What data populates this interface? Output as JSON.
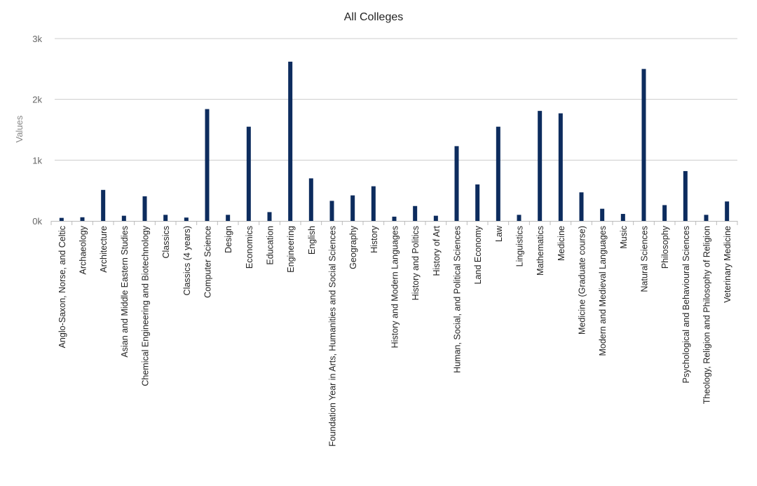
{
  "chart_data": {
    "type": "bar",
    "title": "All Colleges",
    "ylabel": "Values",
    "xlabel": "",
    "ylim": [
      0,
      3000
    ],
    "y_ticks": [
      {
        "value": 0,
        "label": "0k"
      },
      {
        "value": 1000,
        "label": "1k"
      },
      {
        "value": 2000,
        "label": "2k"
      },
      {
        "value": 3000,
        "label": "3k"
      }
    ],
    "grid": true,
    "legend": "none",
    "bar_color": "#0d2c5e",
    "categories": [
      "Anglo-Saxon, Norse, and Celtic",
      "Archaeology",
      "Architecture",
      "Asian and Middle Eastern Studies",
      "Chemical Engineering and Biotechnology",
      "Classics",
      "Classics (4 years)",
      "Computer Science",
      "Design",
      "Economics",
      "Education",
      "Engineering",
      "English",
      "Foundation Year in Arts, Humanities and Social Sciences",
      "Geography",
      "History",
      "History and Modern Languages",
      "History and Politics",
      "History of Art",
      "Human, Social, and Political Sciences",
      "Land Economy",
      "Law",
      "Linguistics",
      "Mathematics",
      "Medicine",
      "Medicine (Graduate course)",
      "Modern and Medieval Languages",
      "Music",
      "Natural Sciences",
      "Philosophy",
      "Psychological and Behavioural Sciences",
      "Theology, Religion and Philosophy of Religion",
      "Veterinary Medicine"
    ],
    "values": [
      50,
      60,
      510,
      85,
      405,
      100,
      55,
      1840,
      100,
      1550,
      145,
      2620,
      700,
      330,
      420,
      570,
      70,
      245,
      85,
      1230,
      600,
      1550,
      100,
      1810,
      1770,
      470,
      200,
      115,
      2500,
      260,
      820,
      100,
      320
    ]
  }
}
